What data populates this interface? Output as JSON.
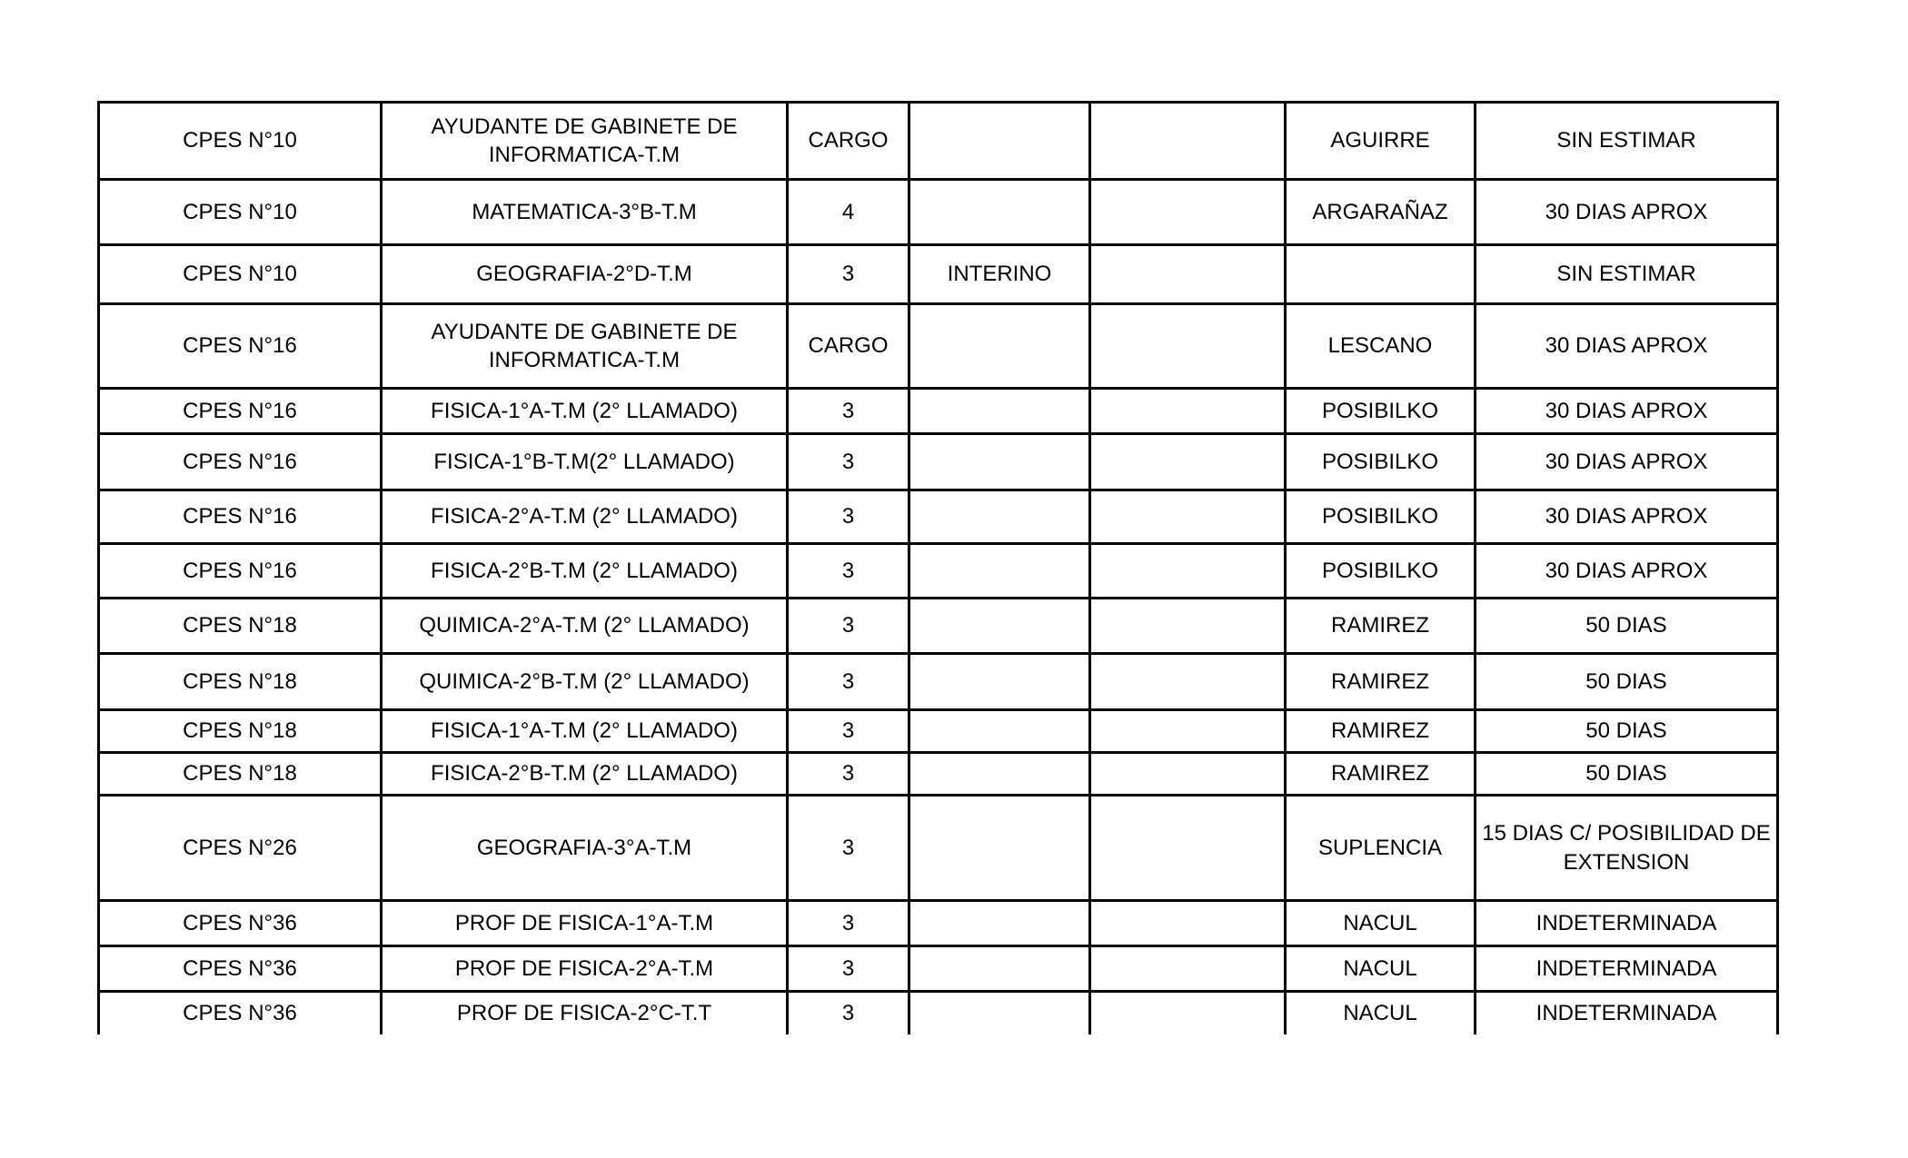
{
  "table": {
    "columns": [
      "school",
      "subject",
      "hours",
      "status",
      "extra",
      "name",
      "duration"
    ],
    "rows": [
      {
        "school": "CPES N°10",
        "subject": "AYUDANTE DE GABINETE DE INFORMATICA-T.M",
        "hours": "CARGO",
        "status": "",
        "extra": "",
        "name": "AGUIRRE",
        "duration": "SIN ESTIMAR"
      },
      {
        "school": "CPES N°10",
        "subject": "MATEMATICA-3°B-T.M",
        "hours": "4",
        "status": "",
        "extra": "",
        "name": "ARGARAÑAZ",
        "duration": "30 DIAS APROX"
      },
      {
        "school": "CPES N°10",
        "subject": "GEOGRAFIA-2°D-T.M",
        "hours": "3",
        "status": "INTERINO",
        "extra": "",
        "name": "",
        "duration": "SIN ESTIMAR"
      },
      {
        "school": "CPES N°16",
        "subject": "AYUDANTE DE GABINETE DE INFORMATICA-T.M",
        "hours": "CARGO",
        "status": "",
        "extra": "",
        "name": "LESCANO",
        "duration": "30 DIAS APROX"
      },
      {
        "school": "CPES N°16",
        "subject": "FISICA-1°A-T.M (2° LLAMADO)",
        "hours": "3",
        "status": "",
        "extra": "",
        "name": "POSIBILKO",
        "duration": "30 DIAS APROX"
      },
      {
        "school": "CPES N°16",
        "subject": "FISICA-1°B-T.M(2° LLAMADO)",
        "hours": "3",
        "status": "",
        "extra": "",
        "name": "POSIBILKO",
        "duration": "30 DIAS APROX"
      },
      {
        "school": "CPES N°16",
        "subject": "FISICA-2°A-T.M (2° LLAMADO)",
        "hours": "3",
        "status": "",
        "extra": "",
        "name": "POSIBILKO",
        "duration": "30 DIAS APROX"
      },
      {
        "school": "CPES N°16",
        "subject": "FISICA-2°B-T.M (2° LLAMADO)",
        "hours": "3",
        "status": "",
        "extra": "",
        "name": "POSIBILKO",
        "duration": "30 DIAS APROX"
      },
      {
        "school": "CPES N°18",
        "subject": "QUIMICA-2°A-T.M (2° LLAMADO)",
        "hours": "3",
        "status": "",
        "extra": "",
        "name": "RAMIREZ",
        "duration": "50 DIAS"
      },
      {
        "school": "CPES N°18",
        "subject": "QUIMICA-2°B-T.M (2° LLAMADO)",
        "hours": "3",
        "status": "",
        "extra": "",
        "name": "RAMIREZ",
        "duration": "50 DIAS"
      },
      {
        "school": "CPES N°18",
        "subject": "FISICA-1°A-T.M (2° LLAMADO)",
        "hours": "3",
        "status": "",
        "extra": "",
        "name": "RAMIREZ",
        "duration": "50 DIAS"
      },
      {
        "school": "CPES N°18",
        "subject": "FISICA-2°B-T.M (2° LLAMADO)",
        "hours": "3",
        "status": "",
        "extra": "",
        "name": "RAMIREZ",
        "duration": "50 DIAS"
      },
      {
        "school": "CPES N°26",
        "subject": "GEOGRAFIA-3°A-T.M",
        "hours": "3",
        "status": "",
        "extra": "",
        "name": "SUPLENCIA",
        "duration": "15 DIAS C/ POSIBILIDAD DE EXTENSION"
      },
      {
        "school": "CPES N°36",
        "subject": "PROF DE FISICA-1°A-T.M",
        "hours": "3",
        "status": "",
        "extra": "",
        "name": "NACUL",
        "duration": "INDETERMINADA"
      },
      {
        "school": "CPES N°36",
        "subject": "PROF DE FISICA-2°A-T.M",
        "hours": "3",
        "status": "",
        "extra": "",
        "name": "NACUL",
        "duration": "INDETERMINADA"
      },
      {
        "school": "CPES N°36",
        "subject": "PROF DE FISICA-2°C-T.T",
        "hours": "3",
        "status": "",
        "extra": "",
        "name": "NACUL",
        "duration": "INDETERMINADA"
      }
    ]
  }
}
